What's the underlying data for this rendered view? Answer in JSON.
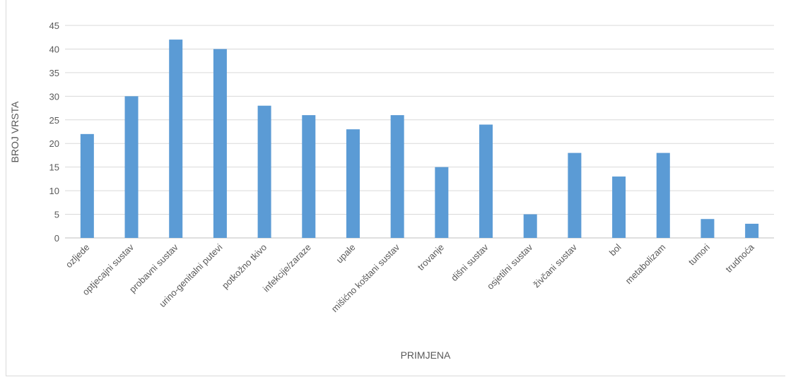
{
  "chart_data": {
    "type": "bar",
    "xlabel": "PRIMJENA",
    "ylabel": "BROJ VRSTA",
    "ylim": [
      0,
      45
    ],
    "yticks": [
      0,
      5,
      10,
      15,
      20,
      25,
      30,
      35,
      40,
      45
    ],
    "grid": true,
    "legend": "none",
    "bar_color": "#5b9bd5",
    "categories": [
      "ozljede",
      "optjecajni sustav",
      "probavni sustav",
      "urino-genitalni putevi",
      "potkožno tkivo",
      "infekcije/zaraze",
      "upale",
      "mišićno koštani sustav",
      "trovanje",
      "dišni sustav",
      "osjetilni sustav",
      "živčani sustav",
      "bol",
      "metabolizam",
      "tumori",
      "trudnoća"
    ],
    "values": [
      22,
      30,
      42,
      40,
      28,
      26,
      23,
      26,
      15,
      24,
      5,
      18,
      13,
      18,
      4,
      3
    ]
  }
}
